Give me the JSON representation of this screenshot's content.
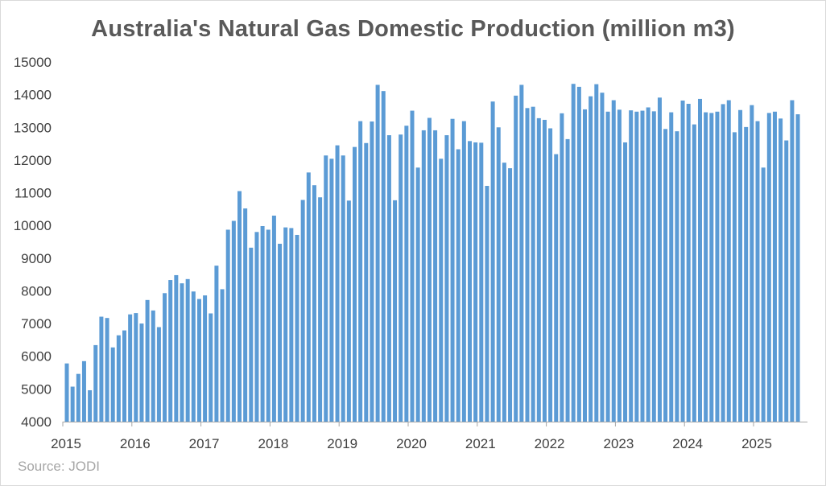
{
  "chart_data": {
    "type": "bar",
    "title": "Australia's Natural Gas Domestic Production (million m3)",
    "source": "Source: JODI",
    "ylim": [
      4000,
      15000
    ],
    "yticks": [
      4000,
      5000,
      6000,
      7000,
      8000,
      9000,
      10000,
      11000,
      12000,
      13000,
      14000,
      15000
    ],
    "xtick_labels": [
      "2015",
      "2016",
      "2017",
      "2018",
      "2019",
      "2020",
      "2021",
      "2022",
      "2023",
      "2024",
      "2025"
    ],
    "grid": false,
    "bar_color": "#5b9bd5",
    "start": "2015-01",
    "frequency": "monthly",
    "values": [
      5780,
      5070,
      5460,
      5850,
      4960,
      6340,
      7210,
      7170,
      6270,
      6640,
      6790,
      7280,
      7320,
      7000,
      7720,
      7400,
      6890,
      7930,
      8330,
      8480,
      8230,
      8360,
      7980,
      7750,
      7860,
      7310,
      8770,
      8050,
      9870,
      10140,
      11050,
      10520,
      9320,
      9800,
      9980,
      9870,
      10300,
      9440,
      9940,
      9920,
      9710,
      10780,
      11620,
      11230,
      10860,
      12140,
      12040,
      12450,
      12140,
      10760,
      12400,
      13190,
      12520,
      13180,
      14300,
      14110,
      12760,
      10770,
      12780,
      13050,
      13510,
      11770,
      12910,
      13290,
      12910,
      12040,
      12760,
      13260,
      12330,
      13190,
      12580,
      12540,
      12530,
      11210,
      13790,
      13000,
      11920,
      11750,
      13970,
      14300,
      13590,
      13630,
      13280,
      13230,
      12970,
      12180,
      13430,
      12640,
      14330,
      14240,
      13550,
      13950,
      14320,
      14060,
      13480,
      13830,
      13540,
      12540,
      13520,
      13480,
      13510,
      13610,
      13490,
      13910,
      12950,
      13460,
      12880,
      13820,
      13720,
      13090,
      13870,
      13460,
      13440,
      13480,
      13710,
      13830,
      12850,
      13530,
      13010,
      13680,
      13190,
      11770,
      13440,
      13480,
      13270,
      12600,
      13830,
      13400
    ]
  }
}
